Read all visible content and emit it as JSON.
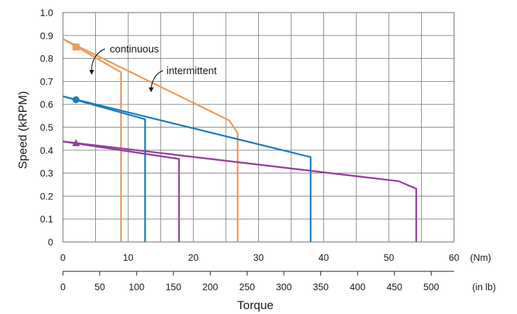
{
  "chart_data": {
    "type": "line",
    "title": "",
    "ylabel": "Speed (kRPM)",
    "xlabel": "Torque",
    "ylim": [
      0,
      1.0
    ],
    "yticks": [
      "0",
      "0.1",
      "0.2",
      "0.3",
      "0.4",
      "0.5",
      "0.6",
      "0.7",
      "0.8",
      "0.9",
      "1.0"
    ],
    "x_primary": {
      "unit_label": "(Nm)",
      "range": [
        0,
        60
      ],
      "ticks": [
        "0",
        "10",
        "20",
        "30",
        "40",
        "50",
        "60"
      ]
    },
    "x_secondary": {
      "unit_label": "(in lb)",
      "range": [
        0,
        531
      ],
      "ticks": [
        "0",
        "50",
        "100",
        "150",
        "200",
        "250",
        "300",
        "350",
        "400",
        "450",
        "500"
      ]
    },
    "grid": true,
    "annotations": {
      "continuous": "continuous",
      "intermittent": "intermittent"
    },
    "series": [
      {
        "color": "#ee9a5a",
        "marker": "square",
        "marker_point": [
          2,
          0.85
        ],
        "continuous": [
          [
            0,
            0.885
          ],
          [
            8.9,
            0.74
          ],
          [
            8.9,
            0
          ]
        ],
        "intermittent": [
          [
            0,
            0.885
          ],
          [
            25.5,
            0.53
          ],
          [
            26.8,
            0.475
          ],
          [
            26.8,
            0
          ]
        ]
      },
      {
        "color": "#1b7dbf",
        "marker": "circle",
        "marker_point": [
          2,
          0.62
        ],
        "continuous": [
          [
            0,
            0.635
          ],
          [
            12.6,
            0.535
          ],
          [
            12.6,
            0
          ]
        ],
        "intermittent": [
          [
            0,
            0.635
          ],
          [
            38,
            0.37
          ],
          [
            38,
            0
          ]
        ]
      },
      {
        "color": "#92409a",
        "marker": "triangle",
        "marker_point": [
          2,
          0.43
        ],
        "continuous": [
          [
            0,
            0.438
          ],
          [
            17.8,
            0.362
          ],
          [
            17.8,
            0
          ]
        ],
        "intermittent": [
          [
            0,
            0.438
          ],
          [
            51.5,
            0.265
          ],
          [
            54.2,
            0.232
          ],
          [
            54.2,
            0
          ]
        ]
      }
    ]
  }
}
